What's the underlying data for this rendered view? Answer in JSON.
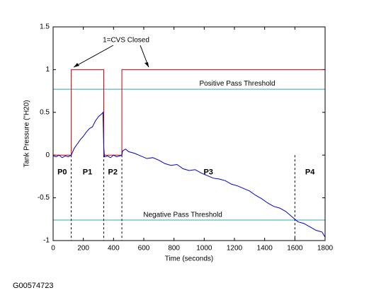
{
  "chart_data": {
    "type": "line",
    "xlabel": "Time (seconds)",
    "ylabel": "Tank Pressure (\"H20)",
    "xlim": [
      0,
      1800
    ],
    "xticks": [
      0,
      200,
      400,
      600,
      800,
      1000,
      1200,
      1400,
      1600,
      1800
    ],
    "ylim": [
      -1,
      1.5
    ],
    "yticks": [
      -1,
      -0.5,
      0,
      0.5,
      1,
      1.5
    ],
    "series": [
      {
        "color": "#cc0000",
        "x": [
          0,
          120,
          120,
          335,
          335,
          455,
          455,
          1800
        ],
        "values": [
          0,
          0,
          1,
          1,
          0,
          0,
          1,
          1
        ]
      },
      {
        "color": "#0000cc",
        "x": [
          0,
          20,
          40,
          60,
          80,
          100,
          120,
          140,
          160,
          180,
          200,
          220,
          240,
          260,
          280,
          300,
          320,
          330,
          335,
          340,
          360,
          380,
          400,
          420,
          440,
          455,
          460,
          480,
          500,
          540,
          580,
          620,
          660,
          700,
          740,
          780,
          820,
          860,
          900,
          940,
          980,
          1020,
          1060,
          1100,
          1140,
          1180,
          1220,
          1260,
          1300,
          1340,
          1380,
          1420,
          1460,
          1500,
          1540,
          1580,
          1620,
          1660,
          1700,
          1740,
          1780,
          1800
        ],
        "values": [
          -0.01,
          -0.02,
          0.0,
          -0.03,
          -0.01,
          -0.02,
          0.0,
          0.08,
          0.13,
          0.18,
          0.22,
          0.27,
          0.31,
          0.33,
          0.4,
          0.45,
          0.48,
          0.5,
          0.1,
          -0.02,
          -0.01,
          -0.03,
          0.0,
          -0.02,
          -0.01,
          0.0,
          0.05,
          0.07,
          0.04,
          0.02,
          -0.01,
          -0.04,
          -0.03,
          -0.06,
          -0.1,
          -0.12,
          -0.11,
          -0.16,
          -0.18,
          -0.17,
          -0.21,
          -0.24,
          -0.27,
          -0.28,
          -0.3,
          -0.34,
          -0.36,
          -0.39,
          -0.42,
          -0.47,
          -0.51,
          -0.56,
          -0.6,
          -0.62,
          -0.66,
          -0.72,
          -0.78,
          -0.8,
          -0.84,
          -0.88,
          -0.9,
          -0.96
        ]
      }
    ],
    "thresholds": [
      {
        "value": 0.77,
        "label": "Positive Pass Threshold",
        "color": "#33a6b0"
      },
      {
        "value": -0.76,
        "label": "Negative Pass Threshold",
        "color": "#33a6b0"
      }
    ],
    "phases": {
      "boundaries": [
        120,
        335,
        455,
        1600
      ],
      "labels": [
        "P0",
        "P1",
        "P2",
        "P3",
        "P4"
      ]
    },
    "annotation": "1=CVS Closed"
  },
  "figure_id": "G00574723"
}
